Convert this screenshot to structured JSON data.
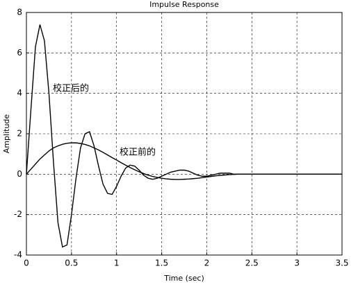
{
  "chart_data": {
    "type": "line",
    "title": "Impulse Response",
    "x_label": "Time (sec)",
    "y_label": "Amplitude",
    "x": [
      0,
      0.05,
      0.1,
      0.15,
      0.2,
      0.25,
      0.3,
      0.35,
      0.4,
      0.45,
      0.5,
      0.55,
      0.6,
      0.65,
      0.7,
      0.75,
      0.8,
      0.85,
      0.9,
      0.95,
      1.0,
      1.05,
      1.1,
      1.15,
      1.2,
      1.25,
      1.3,
      1.35,
      1.4,
      1.45,
      1.5,
      1.55,
      1.6,
      1.65,
      1.7,
      1.75,
      1.8,
      1.85,
      1.9,
      1.95,
      2.0,
      2.05,
      2.1,
      2.15,
      2.2,
      2.25,
      2.3,
      2.35,
      2.4,
      2.45,
      2.5,
      3.0,
      3.5
    ],
    "series": [
      {
        "color": "#000000",
        "values": [
          0,
          3.2,
          6.3,
          7.4,
          6.6,
          4.0,
          0.6,
          -2.4,
          -3.6,
          -3.5,
          -2.0,
          -0.2,
          1.3,
          2.0,
          2.1,
          1.4,
          0.4,
          -0.5,
          -0.95,
          -1.0,
          -0.6,
          -0.1,
          0.3,
          0.45,
          0.4,
          0.2,
          -0.05,
          -0.2,
          -0.25,
          -0.2,
          -0.1,
          0,
          0.1,
          0.15,
          0.2,
          0.2,
          0.15,
          0.05,
          -0.05,
          -0.1,
          -0.1,
          -0.05,
          0,
          0.05,
          0.05,
          0.05,
          0,
          0,
          0,
          0,
          0,
          0,
          0
        ]
      },
      {
        "color": "#000000",
        "values": [
          0,
          0.25,
          0.5,
          0.75,
          0.95,
          1.15,
          1.3,
          1.4,
          1.48,
          1.53,
          1.55,
          1.55,
          1.52,
          1.47,
          1.4,
          1.3,
          1.2,
          1.08,
          0.95,
          0.82,
          0.7,
          0.57,
          0.45,
          0.33,
          0.22,
          0.12,
          0.03,
          -0.05,
          -0.11,
          -0.16,
          -0.2,
          -0.23,
          -0.25,
          -0.26,
          -0.26,
          -0.25,
          -0.24,
          -0.22,
          -0.2,
          -0.17,
          -0.14,
          -0.11,
          -0.08,
          -0.06,
          -0.04,
          -0.02,
          -0.01,
          0,
          0,
          0,
          0,
          0,
          0
        ]
      }
    ],
    "annotations": [
      "校正后的",
      "校正前的"
    ],
    "xlim": [
      0,
      3.5
    ],
    "xticks": [
      0,
      0.5,
      1,
      1.5,
      2,
      2.5,
      3,
      3.5
    ],
    "ylim": [
      -4,
      8
    ],
    "yticks": [
      -4,
      -2,
      0,
      2,
      4,
      6,
      8
    ],
    "grid": true
  }
}
